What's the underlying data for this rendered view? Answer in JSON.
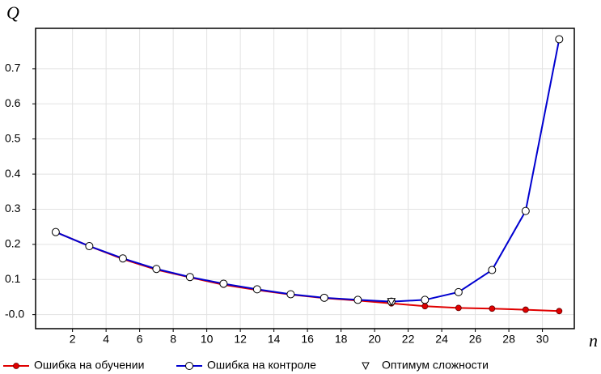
{
  "chart_data": {
    "type": "line",
    "y_label": "Q",
    "x_label": "n",
    "x": [
      1,
      3,
      5,
      7,
      9,
      11,
      13,
      15,
      17,
      19,
      21,
      23,
      25,
      27,
      29,
      31
    ],
    "series": [
      {
        "name": "Ошибка на обучении",
        "color": "#e00000",
        "marker": "dot",
        "values": [
          0.235,
          0.195,
          0.158,
          0.128,
          0.106,
          0.085,
          0.07,
          0.057,
          0.047,
          0.04,
          0.032,
          0.024,
          0.019,
          0.017,
          0.014,
          0.01
        ]
      },
      {
        "name": "Ошибка на контроле",
        "color": "#0000d0",
        "marker": "circle",
        "values": [
          0.235,
          0.195,
          0.16,
          0.13,
          0.107,
          0.088,
          0.072,
          0.058,
          0.048,
          0.042,
          0.037,
          0.042,
          0.064,
          0.127,
          0.295,
          0.784
        ]
      }
    ],
    "optimum": {
      "name": "Оптимум сложности",
      "x": 21,
      "y": 0.037
    },
    "xlim": [
      -0.2,
      31.9
    ],
    "ylim": [
      -0.04,
      0.815
    ],
    "xticks": [
      2,
      4,
      6,
      8,
      10,
      12,
      14,
      16,
      18,
      20,
      22,
      24,
      26,
      28,
      30
    ],
    "yticks": [
      {
        "value": 0,
        "label": "-0.0"
      },
      0.1,
      0.2,
      0.3,
      0.4,
      0.5,
      0.6,
      0.7
    ],
    "grid": true
  }
}
